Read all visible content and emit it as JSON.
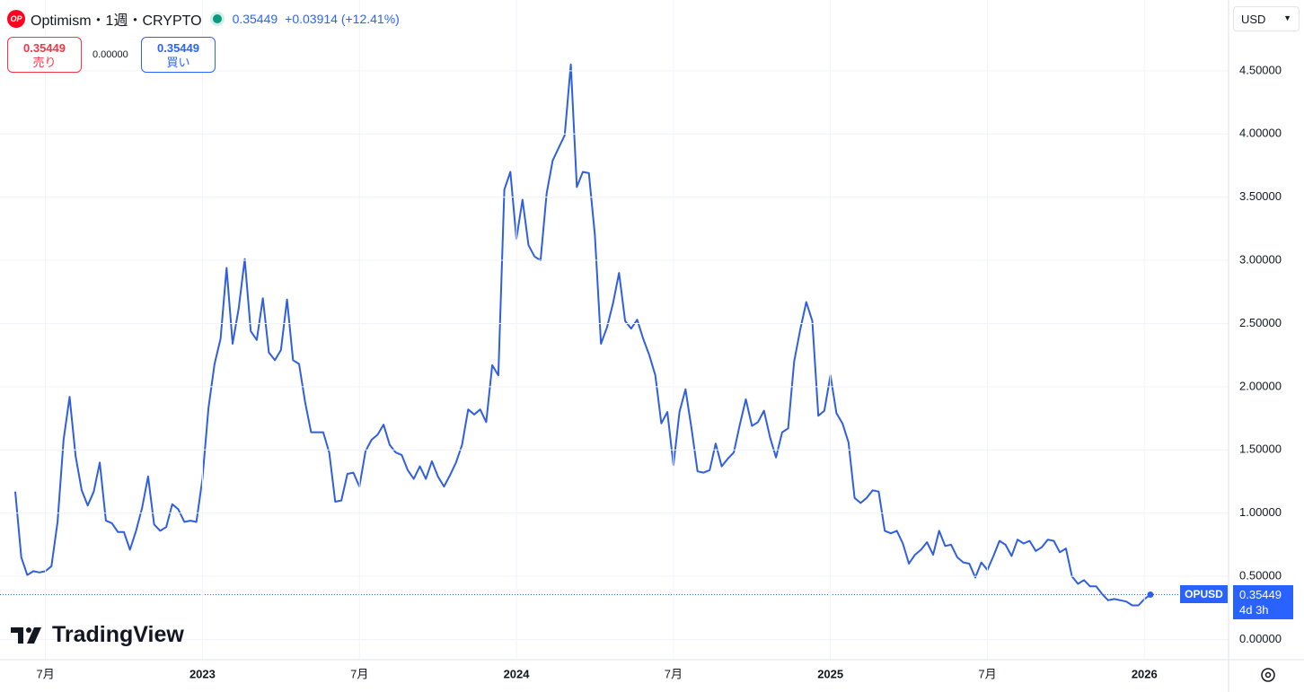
{
  "header": {
    "icon": "OP",
    "price": "0.35449",
    "change": "+0.03914 (+12.41%)",
    "sell": {
      "price": "0.35449",
      "label": "売り"
    },
    "spread": "0.00000",
    "buy": {
      "price": "0.35449",
      "label": "買い"
    },
    "currency": "USD",
    "price_tag": {
      "symbol": "OPUSD",
      "price": "0.35449",
      "countdown": "4d 3h"
    },
    "logo": "TradingView"
  },
  "chart_data": {
    "type": "line",
    "title": "Optimism・1週・CRYPTO",
    "categories": [
      null,
      null,
      null,
      null,
      null,
      "7月",
      null,
      null,
      null,
      null,
      null,
      null,
      null,
      null,
      null,
      null,
      null,
      null,
      null,
      null,
      null,
      null,
      null,
      null,
      null,
      null,
      null,
      null,
      null,
      null,
      null,
      "2023",
      null,
      null,
      null,
      null,
      null,
      null,
      null,
      null,
      null,
      null,
      null,
      null,
      null,
      null,
      null,
      null,
      null,
      null,
      null,
      null,
      null,
      null,
      null,
      null,
      null,
      "7月",
      null,
      null,
      null,
      null,
      null,
      null,
      null,
      null,
      null,
      null,
      null,
      null,
      null,
      null,
      null,
      null,
      null,
      null,
      null,
      null,
      null,
      null,
      null,
      null,
      null,
      "2024",
      null,
      null,
      null,
      null,
      null,
      null,
      null,
      null,
      null,
      null,
      null,
      null,
      null,
      null,
      null,
      null,
      null,
      null,
      null,
      null,
      null,
      null,
      null,
      null,
      null,
      "7月",
      null,
      null,
      null,
      null,
      null,
      null,
      null,
      null,
      null,
      null,
      null,
      null,
      null,
      null,
      null,
      null,
      null,
      null,
      null,
      null,
      null,
      null,
      null,
      null,
      null,
      "2025",
      null,
      null,
      null,
      null,
      null,
      null,
      null,
      null,
      null,
      null,
      null,
      null,
      null,
      null,
      null,
      null,
      null,
      null,
      null,
      null,
      null,
      null,
      null,
      null,
      null,
      "7月",
      null,
      null,
      null,
      null,
      null,
      null,
      null,
      null,
      null,
      null,
      null,
      null,
      null,
      null,
      null,
      null,
      null,
      null,
      null,
      null,
      null,
      null,
      null,
      null,
      null,
      "2026",
      null
    ],
    "series": [
      {
        "name": "OPUSD",
        "color": "#2f5fde",
        "values": [
          1.17,
          0.65,
          0.51,
          0.54,
          0.53,
          0.54,
          0.58,
          0.93,
          1.58,
          1.92,
          1.45,
          1.18,
          1.06,
          1.17,
          1.4,
          0.94,
          0.92,
          0.85,
          0.85,
          0.71,
          0.86,
          1.04,
          1.29,
          0.91,
          0.86,
          0.89,
          1.07,
          1.03,
          0.93,
          0.94,
          0.93,
          1.27,
          1.83,
          2.18,
          2.38,
          2.94,
          2.34,
          2.62,
          3.01,
          2.44,
          2.37,
          2.7,
          2.27,
          2.21,
          2.29,
          2.69,
          2.21,
          2.18,
          1.88,
          1.64,
          1.64,
          1.64,
          1.48,
          1.09,
          1.1,
          1.31,
          1.32,
          1.21,
          1.49,
          1.58,
          1.62,
          1.7,
          1.54,
          1.48,
          1.46,
          1.34,
          1.27,
          1.37,
          1.27,
          1.41,
          1.29,
          1.21,
          1.3,
          1.4,
          1.54,
          1.82,
          1.78,
          1.82,
          1.72,
          2.17,
          2.09,
          3.56,
          3.7,
          3.17,
          3.48,
          3.12,
          3.03,
          3.0,
          3.53,
          3.79,
          3.89,
          3.99,
          4.55,
          3.58,
          3.7,
          3.69,
          3.2,
          2.34,
          2.47,
          2.66,
          2.9,
          2.52,
          2.46,
          2.53,
          2.38,
          2.25,
          2.09,
          1.71,
          1.8,
          1.38,
          1.8,
          1.98,
          1.67,
          1.33,
          1.32,
          1.34,
          1.55,
          1.37,
          1.43,
          1.48,
          1.7,
          1.9,
          1.69,
          1.72,
          1.81,
          1.6,
          1.44,
          1.64,
          1.67,
          2.2,
          2.45,
          2.67,
          2.52,
          1.77,
          1.81,
          2.09,
          1.79,
          1.71,
          1.56,
          1.12,
          1.08,
          1.12,
          1.18,
          1.17,
          0.86,
          0.84,
          0.86,
          0.76,
          0.6,
          0.67,
          0.71,
          0.77,
          0.67,
          0.86,
          0.74,
          0.75,
          0.65,
          0.61,
          0.6,
          0.49,
          0.61,
          0.55,
          0.66,
          0.78,
          0.75,
          0.66,
          0.79,
          0.76,
          0.78,
          0.7,
          0.73,
          0.79,
          0.78,
          0.69,
          0.72,
          0.5,
          0.44,
          0.47,
          0.42,
          0.42,
          0.36,
          0.31,
          0.32,
          0.31,
          0.3,
          0.27,
          0.27,
          0.32,
          0.35449
        ]
      }
    ],
    "ylim": [
      -0.16,
      5.06
    ],
    "yticks": [
      {
        "value": 0,
        "label": "0.00000"
      },
      {
        "value": 0.5,
        "label": "0.50000"
      },
      {
        "value": 1,
        "label": "1.00000"
      },
      {
        "value": 1.5,
        "label": "1.50000"
      },
      {
        "value": 2,
        "label": "2.00000"
      },
      {
        "value": 2.5,
        "label": "2.50000"
      },
      {
        "value": 3,
        "label": "3.00000"
      },
      {
        "value": 3.5,
        "label": "3.50000"
      },
      {
        "value": 4,
        "label": "4.00000"
      },
      {
        "value": 4.5,
        "label": "4.50000"
      }
    ],
    "grid": true
  }
}
